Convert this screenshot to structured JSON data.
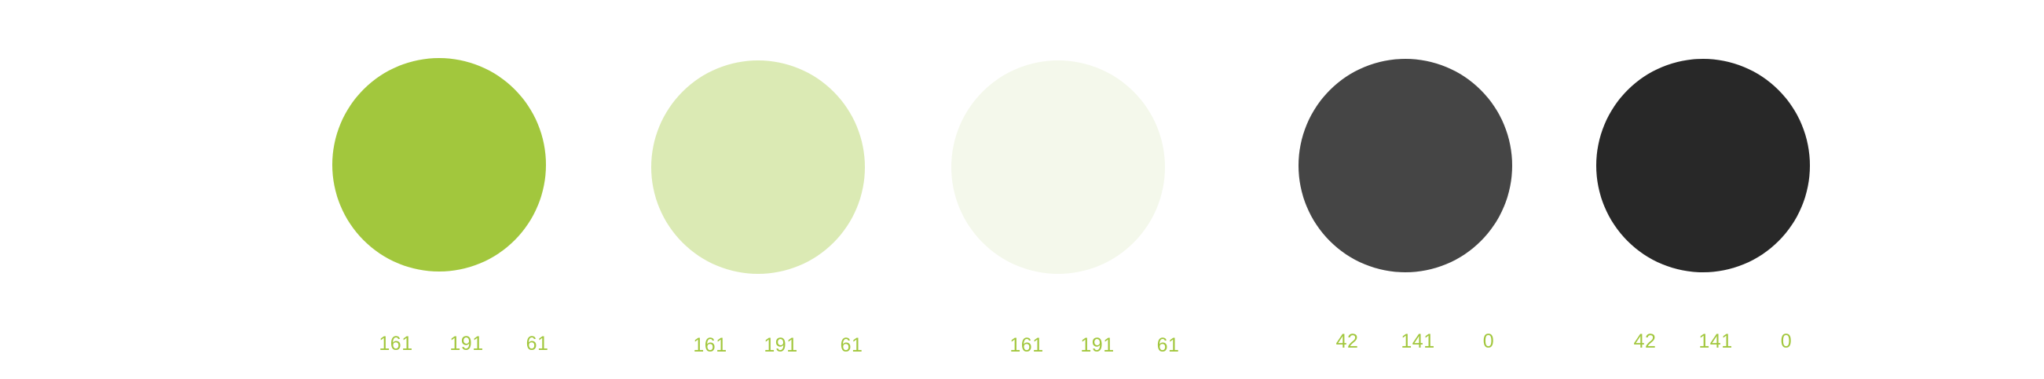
{
  "swatches": [
    {
      "color": "#a2c73d",
      "values": [
        "161",
        "191",
        "61"
      ]
    },
    {
      "color": "#dbeab4",
      "values": [
        "161",
        "191",
        "61"
      ]
    },
    {
      "color": "#f4f8eb",
      "values": [
        "161",
        "191",
        "61"
      ]
    },
    {
      "color": "#454545",
      "values": [
        "42",
        "141",
        "0"
      ]
    },
    {
      "color": "#282828",
      "values": [
        "42",
        "141",
        "0"
      ]
    }
  ],
  "label_color": "#a2c73d"
}
